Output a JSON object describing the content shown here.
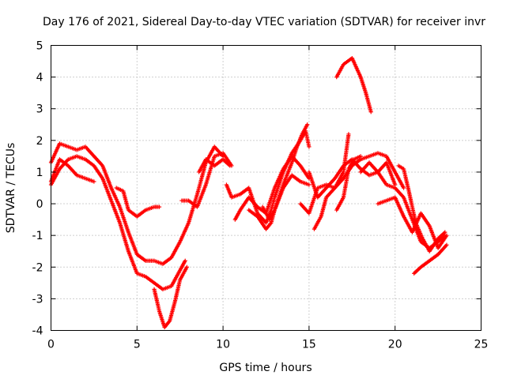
{
  "chart_data": {
    "type": "scatter",
    "title": "Day 176 of 2021, Sidereal Day-to-day VTEC variation (SDTVAR) for receiver invr",
    "xlabel": "GPS time / hours",
    "ylabel": "SDTVAR / TECUs",
    "xlim": [
      0,
      25
    ],
    "ylim": [
      -4,
      5
    ],
    "xticks": [
      0,
      5,
      10,
      15,
      20,
      25
    ],
    "yticks": [
      -4,
      -3,
      -2,
      -1,
      0,
      1,
      2,
      3,
      4,
      5
    ],
    "grid": true,
    "marker": "+",
    "color": "#ff0000",
    "series": [
      {
        "name": "trace-1",
        "points": [
          [
            0.0,
            1.3
          ],
          [
            0.5,
            1.9
          ],
          [
            1.0,
            1.8
          ],
          [
            1.5,
            1.7
          ],
          [
            2.0,
            1.8
          ],
          [
            2.5,
            1.5
          ],
          [
            3.0,
            1.2
          ],
          [
            3.5,
            0.5
          ],
          [
            4.0,
            -0.1
          ],
          [
            4.5,
            -0.9
          ],
          [
            5.0,
            -1.6
          ],
          [
            5.5,
            -1.8
          ],
          [
            6.0,
            -1.8
          ],
          [
            6.5,
            -1.9
          ],
          [
            7.0,
            -1.7
          ],
          [
            7.5,
            -1.2
          ],
          [
            8.0,
            -0.6
          ],
          [
            8.5,
            0.3
          ],
          [
            9.0,
            1.3
          ],
          [
            9.5,
            1.8
          ],
          [
            10.0,
            1.5
          ]
        ]
      },
      {
        "name": "trace-2",
        "points": [
          [
            0.0,
            0.6
          ],
          [
            0.5,
            1.1
          ],
          [
            1.0,
            1.4
          ],
          [
            1.5,
            1.5
          ],
          [
            2.0,
            1.4
          ],
          [
            2.5,
            1.2
          ],
          [
            3.0,
            0.8
          ],
          [
            3.5,
            0.1
          ],
          [
            4.0,
            -0.6
          ],
          [
            4.5,
            -1.5
          ],
          [
            5.0,
            -2.2
          ],
          [
            5.5,
            -2.3
          ],
          [
            6.0,
            -2.5
          ],
          [
            6.5,
            -2.7
          ],
          [
            7.0,
            -2.6
          ],
          [
            7.5,
            -2.1
          ],
          [
            7.8,
            -1.8
          ]
        ]
      },
      {
        "name": "trace-3",
        "points": [
          [
            0.0,
            0.7
          ],
          [
            0.5,
            1.4
          ],
          [
            1.0,
            1.2
          ],
          [
            1.5,
            0.9
          ],
          [
            2.0,
            0.8
          ],
          [
            2.5,
            0.7
          ]
        ]
      },
      {
        "name": "trace-4",
        "points": [
          [
            3.8,
            0.5
          ],
          [
            4.2,
            0.4
          ],
          [
            4.5,
            -0.2
          ],
          [
            5.0,
            -0.4
          ],
          [
            5.5,
            -0.2
          ],
          [
            6.0,
            -0.1
          ],
          [
            6.3,
            -0.1
          ]
        ]
      },
      {
        "name": "trace-5",
        "points": [
          [
            6.0,
            -2.7
          ],
          [
            6.3,
            -3.4
          ],
          [
            6.6,
            -3.9
          ],
          [
            6.9,
            -3.7
          ],
          [
            7.2,
            -3.1
          ],
          [
            7.5,
            -2.4
          ],
          [
            7.9,
            -2.0
          ]
        ]
      },
      {
        "name": "trace-6",
        "points": [
          [
            7.6,
            0.1
          ],
          [
            8.0,
            0.1
          ],
          [
            8.5,
            -0.1
          ],
          [
            9.0,
            0.6
          ],
          [
            9.5,
            1.5
          ],
          [
            10.0,
            1.6
          ],
          [
            10.5,
            1.2
          ]
        ]
      },
      {
        "name": "trace-7",
        "points": [
          [
            8.6,
            1.0
          ],
          [
            9.0,
            1.4
          ],
          [
            9.5,
            1.2
          ],
          [
            10.0,
            1.4
          ],
          [
            10.4,
            1.2
          ]
        ]
      },
      {
        "name": "trace-8",
        "points": [
          [
            10.2,
            0.6
          ],
          [
            10.5,
            0.2
          ],
          [
            11.0,
            0.3
          ],
          [
            11.5,
            0.5
          ],
          [
            12.0,
            -0.3
          ],
          [
            12.5,
            -0.6
          ],
          [
            12.8,
            -0.2
          ],
          [
            13.0,
            0.2
          ],
          [
            13.5,
            1.0
          ],
          [
            14.0,
            1.6
          ],
          [
            14.5,
            2.0
          ],
          [
            14.8,
            2.3
          ],
          [
            15.0,
            1.8
          ]
        ]
      },
      {
        "name": "trace-9",
        "points": [
          [
            10.7,
            -0.5
          ],
          [
            11.0,
            -0.2
          ],
          [
            11.5,
            0.2
          ],
          [
            12.0,
            -0.1
          ],
          [
            12.5,
            -0.3
          ],
          [
            13.0,
            0.5
          ],
          [
            13.5,
            1.1
          ],
          [
            14.0,
            1.5
          ],
          [
            14.5,
            1.2
          ],
          [
            15.0,
            0.8
          ]
        ]
      },
      {
        "name": "trace-10",
        "points": [
          [
            11.5,
            -0.2
          ],
          [
            12.0,
            -0.4
          ],
          [
            12.5,
            -0.8
          ],
          [
            12.8,
            -0.6
          ],
          [
            13.0,
            -0.2
          ],
          [
            13.5,
            0.5
          ],
          [
            14.0,
            0.9
          ],
          [
            14.5,
            0.7
          ],
          [
            15.0,
            0.6
          ]
        ]
      },
      {
        "name": "trace-11",
        "points": [
          [
            12.3,
            -0.1
          ],
          [
            12.7,
            -0.5
          ],
          [
            13.0,
            -0.2
          ],
          [
            13.5,
            0.6
          ],
          [
            14.0,
            1.3
          ],
          [
            14.3,
            1.8
          ],
          [
            14.6,
            2.2
          ],
          [
            14.9,
            2.5
          ]
        ]
      },
      {
        "name": "trace-12",
        "points": [
          [
            14.5,
            0.0
          ],
          [
            15.0,
            -0.3
          ],
          [
            15.5,
            0.5
          ],
          [
            16.0,
            0.6
          ],
          [
            16.5,
            0.5
          ],
          [
            17.0,
            1.0
          ],
          [
            17.3,
            2.2
          ]
        ]
      },
      {
        "name": "trace-13",
        "points": [
          [
            15.0,
            1.0
          ],
          [
            15.5,
            0.2
          ],
          [
            16.0,
            0.5
          ],
          [
            16.5,
            0.8
          ],
          [
            17.0,
            1.2
          ],
          [
            17.5,
            1.4
          ],
          [
            18.0,
            1.1
          ],
          [
            18.5,
            0.9
          ],
          [
            19.0,
            1.0
          ],
          [
            19.5,
            1.3
          ],
          [
            20.0,
            0.6
          ]
        ]
      },
      {
        "name": "trace-14",
        "points": [
          [
            15.3,
            -0.8
          ],
          [
            15.7,
            -0.4
          ],
          [
            16.0,
            0.2
          ],
          [
            16.5,
            0.5
          ],
          [
            17.0,
            0.8
          ],
          [
            17.5,
            1.2
          ],
          [
            18.0,
            1.4
          ],
          [
            18.5,
            1.5
          ],
          [
            19.0,
            1.6
          ],
          [
            19.5,
            1.5
          ],
          [
            20.0,
            1.0
          ],
          [
            20.5,
            0.5
          ]
        ]
      },
      {
        "name": "trace-15",
        "points": [
          [
            18.0,
            1.0
          ],
          [
            18.5,
            1.3
          ],
          [
            19.0,
            1.0
          ],
          [
            19.5,
            0.6
          ],
          [
            20.0,
            0.5
          ],
          [
            20.5,
            0.2
          ],
          [
            21.0,
            -0.5
          ],
          [
            21.5,
            -1.2
          ],
          [
            22.0,
            -1.4
          ],
          [
            22.5,
            -1.2
          ],
          [
            22.9,
            -1.0
          ]
        ]
      },
      {
        "name": "trace-16",
        "points": [
          [
            19.0,
            0.0
          ],
          [
            19.5,
            0.1
          ],
          [
            20.0,
            0.2
          ],
          [
            20.5,
            -0.4
          ],
          [
            21.0,
            -0.9
          ],
          [
            21.5,
            -0.3
          ],
          [
            22.0,
            -0.7
          ],
          [
            22.5,
            -1.4
          ],
          [
            23.0,
            -1.0
          ]
        ]
      },
      {
        "name": "trace-17",
        "points": [
          [
            20.2,
            1.2
          ],
          [
            20.5,
            1.1
          ],
          [
            20.8,
            0.4
          ],
          [
            21.2,
            -0.6
          ],
          [
            21.6,
            -1.1
          ],
          [
            22.0,
            -1.5
          ],
          [
            22.5,
            -1.1
          ],
          [
            22.9,
            -0.9
          ]
        ]
      },
      {
        "name": "trace-18",
        "points": [
          [
            21.1,
            -2.2
          ],
          [
            21.5,
            -2.0
          ],
          [
            22.0,
            -1.8
          ],
          [
            22.5,
            -1.6
          ],
          [
            23.0,
            -1.3
          ]
        ]
      },
      {
        "name": "trace-19",
        "points": [
          [
            16.6,
            -0.2
          ],
          [
            17.0,
            0.2
          ],
          [
            17.3,
            1.1
          ],
          [
            17.6,
            1.4
          ],
          [
            18.0,
            1.5
          ]
        ]
      },
      {
        "name": "trace-20",
        "points": [
          [
            16.6,
            4.0
          ],
          [
            17.0,
            4.4
          ],
          [
            17.5,
            4.6
          ],
          [
            18.0,
            4.0
          ],
          [
            18.3,
            3.5
          ],
          [
            18.6,
            2.9
          ]
        ]
      }
    ]
  }
}
